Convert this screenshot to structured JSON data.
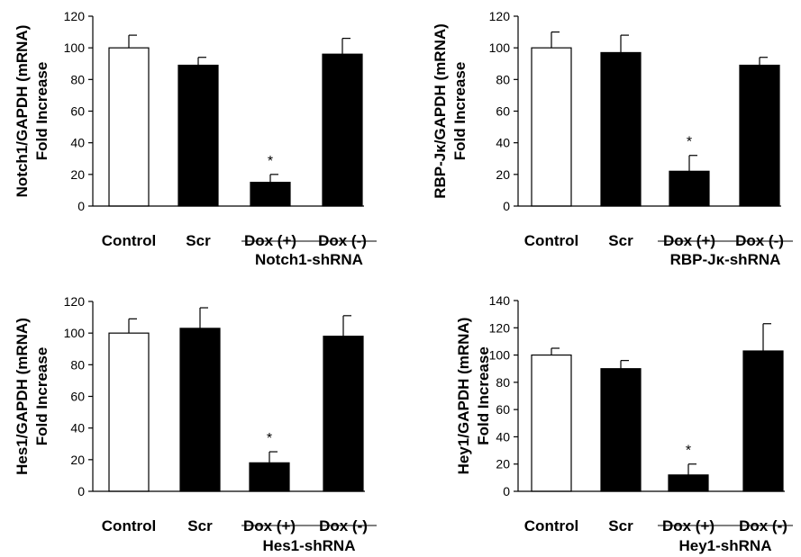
{
  "chart_data": [
    {
      "type": "bar",
      "ylabel_line1": "Notch1/GAPDH (mRNA)",
      "ylabel_line2": "Fold Increase",
      "categories": [
        "Control",
        "Scr",
        "Dox (+)",
        "Dox (-)"
      ],
      "values": [
        100,
        89,
        15,
        96
      ],
      "errors": [
        8,
        5,
        5,
        10
      ],
      "fills": [
        "#ffffff",
        "#000000",
        "#000000",
        "#000000"
      ],
      "significant": [
        "",
        "",
        "*",
        ""
      ],
      "group_label": "Notch1-shRNA",
      "ylim": [
        0,
        120
      ],
      "yticks": [
        0,
        20,
        40,
        60,
        80,
        100,
        120
      ]
    },
    {
      "type": "bar",
      "ylabel_line1": "RBP-Jκ/GAPDH (mRNA)",
      "ylabel_line2": "Fold Increase",
      "categories": [
        "Control",
        "Scr",
        "Dox (+)",
        "Dox (-)"
      ],
      "values": [
        100,
        97,
        22,
        89
      ],
      "errors": [
        10,
        11,
        10,
        5
      ],
      "fills": [
        "#ffffff",
        "#000000",
        "#000000",
        "#000000"
      ],
      "significant": [
        "",
        "",
        "*",
        ""
      ],
      "group_label": "RBP-Jκ-shRNA",
      "ylim": [
        0,
        120
      ],
      "yticks": [
        0,
        20,
        40,
        60,
        80,
        100,
        120
      ]
    },
    {
      "type": "bar",
      "ylabel_line1": "Hes1/GAPDH (mRNA)",
      "ylabel_line2": "Fold Increase",
      "categories": [
        "Control",
        "Scr",
        "Dox (+)",
        "Dox (-)"
      ],
      "values": [
        100,
        103,
        18,
        98
      ],
      "errors": [
        9,
        13,
        7,
        13
      ],
      "fills": [
        "#ffffff",
        "#000000",
        "#000000",
        "#000000"
      ],
      "significant": [
        "",
        "",
        "*",
        ""
      ],
      "group_label": "Hes1-shRNA",
      "ylim": [
        0,
        120
      ],
      "yticks": [
        0,
        20,
        40,
        60,
        80,
        100,
        120
      ]
    },
    {
      "type": "bar",
      "ylabel_line1": "Hey1/GAPDH (mRNA)",
      "ylabel_line2": "Fold Increase",
      "categories": [
        "Control",
        "Scr",
        "Dox (+)",
        "Dox (-)"
      ],
      "values": [
        100,
        90,
        12,
        103
      ],
      "errors": [
        5,
        6,
        8,
        20
      ],
      "fills": [
        "#ffffff",
        "#000000",
        "#000000",
        "#000000"
      ],
      "significant": [
        "",
        "",
        "*",
        ""
      ],
      "group_label": "Hey1-shRNA",
      "ylim": [
        0,
        140
      ],
      "yticks": [
        0,
        20,
        40,
        60,
        80,
        100,
        120,
        140
      ]
    }
  ]
}
